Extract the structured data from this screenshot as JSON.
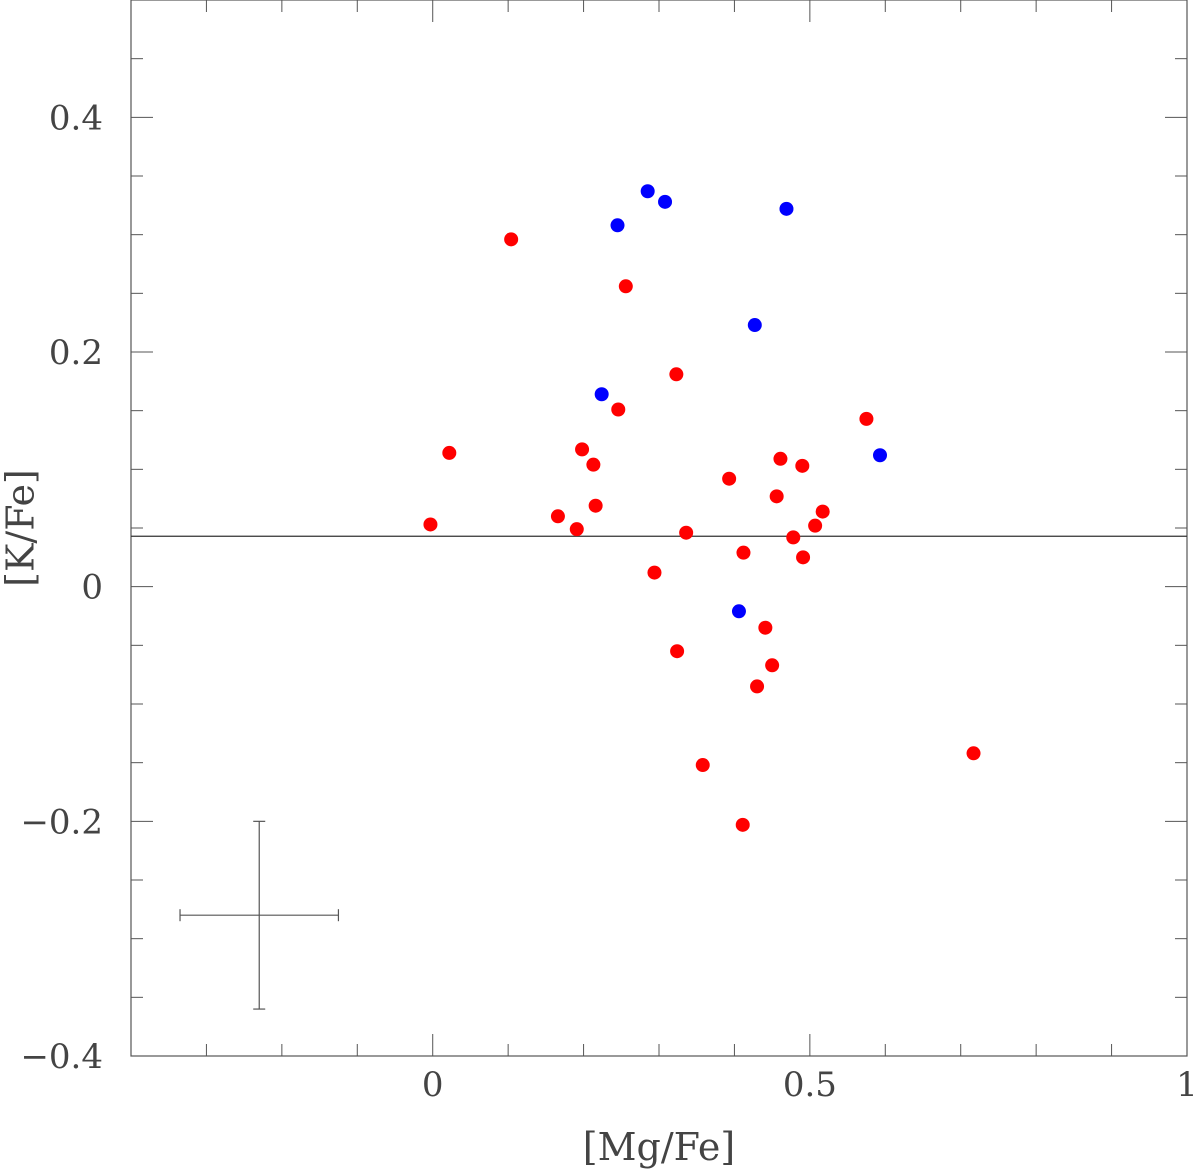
{
  "chart_data": {
    "type": "scatter",
    "title": "",
    "xlabel": "[Mg/Fe]",
    "ylabel": "[K/Fe]",
    "xlim": [
      -0.4,
      1.0
    ],
    "ylim": [
      -0.4,
      0.5
    ],
    "x_ticks": [
      {
        "value": 0,
        "label": "0"
      },
      {
        "value": 0.5,
        "label": "0.5"
      },
      {
        "value": 1,
        "label": "1"
      }
    ],
    "y_ticks": [
      {
        "value": -0.4,
        "label": "−0.4"
      },
      {
        "value": -0.2,
        "label": "−0.2"
      },
      {
        "value": 0,
        "label": "0"
      },
      {
        "value": 0.2,
        "label": "0.2"
      },
      {
        "value": 0.4,
        "label": "0.4"
      }
    ],
    "reference_line": {
      "y": 0.043
    },
    "error_bar": {
      "x": -0.23,
      "y": -0.28,
      "x_err": 0.105,
      "y_err": 0.08
    },
    "series": [
      {
        "color": "#ff0000",
        "points": [
          [
            -0.003,
            0.053
          ],
          [
            0.022,
            0.114
          ],
          [
            0.104,
            0.296
          ],
          [
            0.166,
            0.06
          ],
          [
            0.191,
            0.049
          ],
          [
            0.198,
            0.117
          ],
          [
            0.213,
            0.104
          ],
          [
            0.216,
            0.069
          ],
          [
            0.246,
            0.151
          ],
          [
            0.256,
            0.256
          ],
          [
            0.294,
            0.012
          ],
          [
            0.323,
            0.181
          ],
          [
            0.324,
            -0.055
          ],
          [
            0.336,
            0.046
          ],
          [
            0.358,
            -0.152
          ],
          [
            0.393,
            0.092
          ],
          [
            0.412,
            0.029
          ],
          [
            0.411,
            -0.203
          ],
          [
            0.43,
            -0.085
          ],
          [
            0.441,
            -0.035
          ],
          [
            0.45,
            -0.067
          ],
          [
            0.456,
            0.077
          ],
          [
            0.461,
            0.109
          ],
          [
            0.478,
            0.042
          ],
          [
            0.49,
            0.103
          ],
          [
            0.491,
            0.025
          ],
          [
            0.507,
            0.052
          ],
          [
            0.517,
            0.064
          ],
          [
            0.575,
            0.143
          ],
          [
            0.717,
            -0.142
          ]
        ]
      },
      {
        "color": "#0000ff",
        "points": [
          [
            0.224,
            0.164
          ],
          [
            0.245,
            0.308
          ],
          [
            0.285,
            0.337
          ],
          [
            0.308,
            0.328
          ],
          [
            0.406,
            -0.021
          ],
          [
            0.427,
            0.223
          ],
          [
            0.469,
            0.322
          ],
          [
            0.593,
            0.112
          ]
        ]
      }
    ]
  }
}
